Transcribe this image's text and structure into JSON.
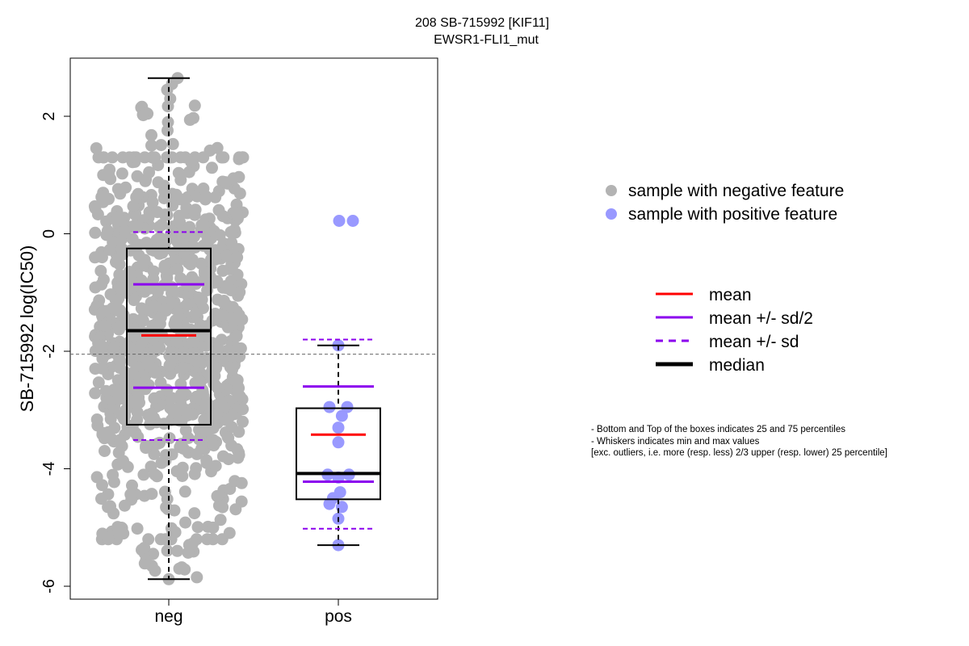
{
  "chart_data": {
    "type": "box",
    "title_line1": "208 SB-715992 [KIF11]",
    "title_line2": "EWSR1-FLI1_mut",
    "ylabel": "SB-715992 log(IC50)",
    "xlabel": "",
    "categories": [
      "neg",
      "pos"
    ],
    "yticks": [
      -6,
      -4,
      -2,
      0,
      2
    ],
    "ylim": [
      -6.2,
      2.95
    ],
    "reference_line": -2.05,
    "groups": [
      {
        "name": "neg",
        "min": -5.88,
        "q1": -3.25,
        "median": -1.65,
        "q3": -0.25,
        "max": 2.65,
        "mean": -1.73,
        "mean_minus_half_sd": -2.62,
        "mean_plus_half_sd": -0.86,
        "mean_minus_sd": -3.51,
        "mean_plus_sd": 0.03,
        "point_count": 900,
        "point_range": [
          -5.88,
          2.65
        ]
      },
      {
        "name": "pos",
        "min": -5.3,
        "q1": -4.52,
        "median": -4.08,
        "q3": -2.97,
        "max": -1.9,
        "mean": -3.42,
        "mean_minus_half_sd": -4.22,
        "mean_plus_half_sd": -2.6,
        "mean_minus_sd": -5.02,
        "mean_plus_sd": -1.8,
        "points": [
          0.22,
          0.22,
          -1.9,
          -2.95,
          -2.95,
          -3.1,
          -3.3,
          -3.55,
          -4.1,
          -4.1,
          -4.15,
          -4.4,
          -4.5,
          -4.6,
          -4.65,
          -4.85,
          -5.3
        ]
      }
    ],
    "legend_points": [
      {
        "label": "sample with negative feature",
        "color": "#b3b3b3"
      },
      {
        "label": "sample with positive feature",
        "color": "#9999ff"
      }
    ],
    "legend_lines": [
      {
        "label": "mean",
        "color": "#ff0000",
        "style": "solid"
      },
      {
        "label": "mean +/- sd/2",
        "color": "#8b00ee",
        "style": "solid"
      },
      {
        "label": "mean +/- sd",
        "color": "#8b00ee",
        "style": "dashed"
      },
      {
        "label": "median",
        "color": "#000000",
        "style": "thick"
      }
    ],
    "colors": {
      "neg_points": "#b3b3b3",
      "pos_points": "#9999ff",
      "mean": "#ff0000",
      "sd": "#8b00ee",
      "median": "#000000"
    }
  },
  "notes": {
    "line1": "- Bottom and Top of the boxes indicates 25 and 75 percentiles",
    "line2": "- Whiskers indicates min and max values",
    "line3": "[exc. outliers, i.e. more (resp. less) 2/3 upper (resp. lower) 25 percentile]"
  }
}
